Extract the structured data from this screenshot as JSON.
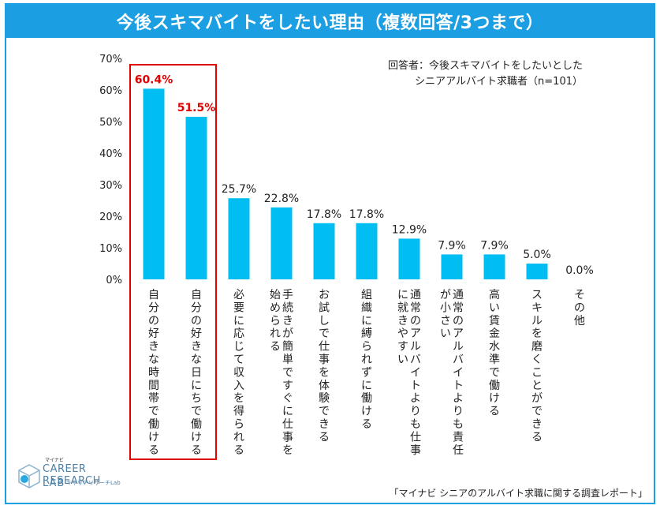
{
  "header": {
    "title": "今後スキマバイトをしたい理由（複数回答/3つまで）"
  },
  "note": {
    "line1": "回答者：今後スキマバイトをしたいとした",
    "line2": "シニアアルバイト求職者（n=101）"
  },
  "source": "「マイナビ シニアのアルバイト求職に関する調査レポート」",
  "logo": {
    "brand": "マイナビ",
    "line1": "CAREER RESEARCH",
    "line2": "LAB",
    "sub": "キャリアリサーチLab"
  },
  "colors": {
    "bar": "#00bdf2",
    "accent": "#1b9ee2",
    "highlight": "#e00000"
  },
  "chart_data": {
    "type": "bar",
    "categories": [
      "自分の好きな時間帯で働ける",
      "自分の好きな日にちで働ける",
      "必要に応じて収入を得られる",
      "手続きが簡単ですぐに仕事を始められる",
      "お試しで仕事を体験できる",
      "組織に縛られずに働ける",
      "通常のアルバイトよりも仕事に就きやすい",
      "通常のアルバイトよりも責任が小さい",
      "高い賃金水準で働ける",
      "スキルを磨くことができる",
      "その他"
    ],
    "category_lines": [
      [
        "自分の好きな時間帯で働ける"
      ],
      [
        "自分の好きな日にちで働ける"
      ],
      [
        "必要に応じて収入を得られる"
      ],
      [
        "手続きが簡単ですぐに仕事を",
        "始められる"
      ],
      [
        "お試しで仕事を体験できる"
      ],
      [
        "組織に縛られずに働ける"
      ],
      [
        "通常のアルバイトよりも仕事",
        "に就きやすい"
      ],
      [
        "通常のアルバイトよりも責任",
        "が小さい"
      ],
      [
        "高い賃金水準で働ける"
      ],
      [
        "スキルを磨くことができる"
      ],
      [
        "その他"
      ]
    ],
    "values": [
      60.4,
      51.5,
      25.7,
      22.8,
      17.8,
      17.8,
      12.9,
      7.9,
      7.9,
      5.0,
      0.0
    ],
    "value_labels": [
      "60.4%",
      "51.5%",
      "25.7%",
      "22.8%",
      "17.8%",
      "17.8%",
      "12.9%",
      "7.9%",
      "7.9%",
      "5.0%",
      "0.0%"
    ],
    "highlighted": [
      0,
      1
    ],
    "ylim": [
      0,
      70
    ],
    "yticks": [
      "0%",
      "10%",
      "20%",
      "30%",
      "40%",
      "50%",
      "60%",
      "70%"
    ],
    "grid": false,
    "legend": "none"
  }
}
